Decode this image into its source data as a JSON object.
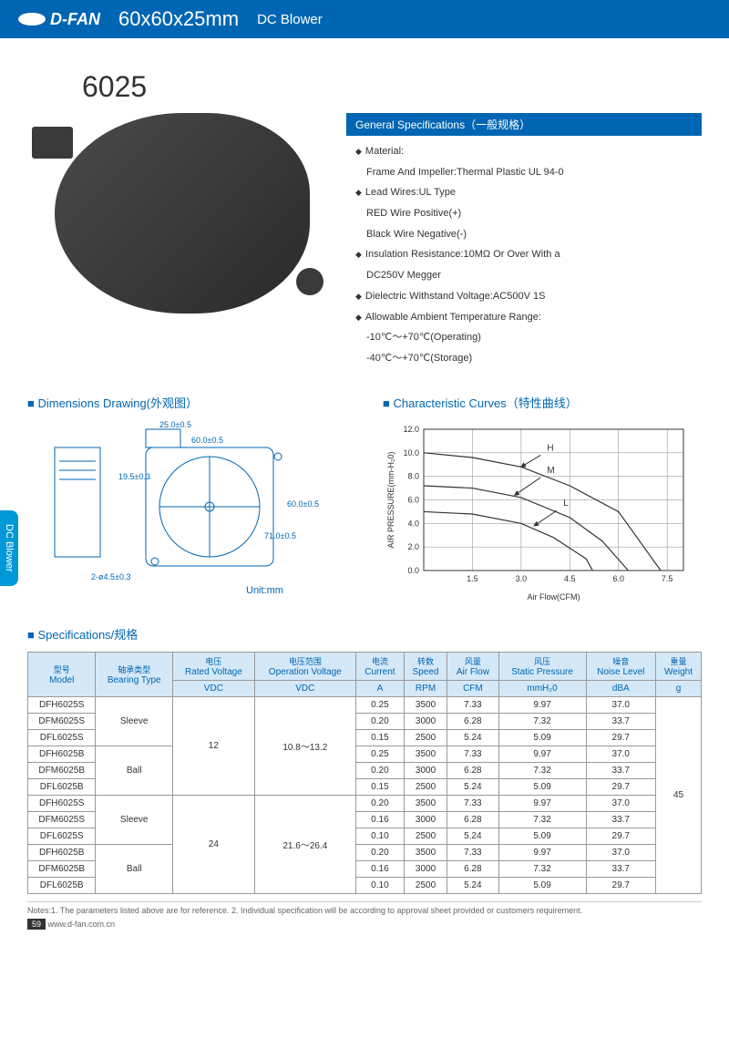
{
  "header": {
    "brand": "D-FAN",
    "dimensions": "60x60x25mm",
    "type": "DC Blower"
  },
  "sideTab": "DC Blower",
  "modelTitle": "6025",
  "generalSpecs": {
    "title": "General Specifications（一般规格）",
    "items": [
      {
        "label": "Material:",
        "sub": [
          "Frame And Impeller:Thermal Plastic UL 94-0"
        ]
      },
      {
        "label": "Lead Wires:UL Type",
        "sub": [
          "RED Wire Positive(+)",
          "Black Wire Negative(-)"
        ]
      },
      {
        "label": "Insulation Resistance:10MΩ Or Over With a",
        "sub": [
          "DC250V Megger"
        ]
      },
      {
        "label": "Dielectric Withstand Voltage:AC500V 1S",
        "sub": []
      },
      {
        "label": "Allowable Ambient Temperature Range:",
        "sub": [
          "-10℃～+70℃(Operating)",
          "-40℃～+70℃(Storage)"
        ]
      }
    ]
  },
  "sections": {
    "dimensions": "Dimensions Drawing(外观图）",
    "curves": "Characteristic Curves（特性曲线）",
    "specs": "Specifications/规格"
  },
  "drawing": {
    "labels": {
      "w": "60.0±0.5",
      "h": "60.0±0.5",
      "outlet": "25.0±0.5",
      "outletH": "19.5±0.3",
      "depth": "71.0±0.5",
      "hole": "2-ø4.5±0.3",
      "unit": "Unit:mm"
    },
    "colors": {
      "line": "#0066b3",
      "text": "#0066b3"
    }
  },
  "chart": {
    "type": "line",
    "xlabel": "Air Flow(CFM)",
    "ylabel": "AIR PRESSURE(mm-H₂0)",
    "xlim": [
      0,
      8
    ],
    "xticks": [
      1.5,
      3.0,
      4.5,
      6.0,
      7.5
    ],
    "ylim": [
      0,
      12
    ],
    "yticks": [
      0.0,
      2.0,
      4.0,
      6.0,
      8.0,
      10.0,
      12.0
    ],
    "grid_color": "#888",
    "line_color": "#333",
    "bg": "#ffffff",
    "series": {
      "H": {
        "label": "H",
        "points": [
          [
            0,
            10
          ],
          [
            1.5,
            9.6
          ],
          [
            3,
            8.8
          ],
          [
            4.5,
            7.2
          ],
          [
            6,
            5
          ],
          [
            7.3,
            0
          ]
        ]
      },
      "M": {
        "label": "M",
        "points": [
          [
            0,
            7.2
          ],
          [
            1.5,
            7
          ],
          [
            3,
            6.2
          ],
          [
            4.5,
            4.5
          ],
          [
            5.5,
            2.5
          ],
          [
            6.3,
            0
          ]
        ]
      },
      "L": {
        "label": "L",
        "points": [
          [
            0,
            5
          ],
          [
            1.5,
            4.8
          ],
          [
            3,
            4
          ],
          [
            4,
            2.8
          ],
          [
            5,
            1
          ],
          [
            5.2,
            0
          ]
        ]
      }
    }
  },
  "table": {
    "headers": [
      {
        "cn": "型号",
        "en": "Model"
      },
      {
        "cn": "轴承类型",
        "en": "Bearing Type"
      },
      {
        "cn": "电压",
        "en": "Rated Voltage",
        "unit": "VDC"
      },
      {
        "cn": "电压范围",
        "en": "Operation Voltage",
        "unit": "VDC"
      },
      {
        "cn": "电流",
        "en": "Current",
        "unit": "A"
      },
      {
        "cn": "转数",
        "en": "Speed",
        "unit": "RPM"
      },
      {
        "cn": "风量",
        "en": "Air Flow",
        "unit": "CFM"
      },
      {
        "cn": "风压",
        "en": "Static Pressure",
        "unit": "mmH₂0"
      },
      {
        "cn": "噪音",
        "en": "Noise Level",
        "unit": "dBA"
      },
      {
        "cn": "重量",
        "en": "Weight",
        "unit": "g"
      }
    ],
    "bearings": {
      "sleeve": "Sleeve",
      "ball": "Ball"
    },
    "voltages": {
      "v12": "12",
      "v24": "24"
    },
    "ranges": {
      "r12": "10.8～13.2",
      "r24": "21.6～26.4"
    },
    "weight": "45",
    "rows": [
      [
        "DFH6025S",
        "0.25",
        "3500",
        "7.33",
        "9.97",
        "37.0"
      ],
      [
        "DFM6025S",
        "0.20",
        "3000",
        "6.28",
        "7.32",
        "33.7"
      ],
      [
        "DFL6025S",
        "0.15",
        "2500",
        "5.24",
        "5.09",
        "29.7"
      ],
      [
        "DFH6025B",
        "0.25",
        "3500",
        "7.33",
        "9.97",
        "37.0"
      ],
      [
        "DFM6025B",
        "0.20",
        "3000",
        "6.28",
        "7.32",
        "33.7"
      ],
      [
        "DFL6025B",
        "0.15",
        "2500",
        "5.24",
        "5.09",
        "29.7"
      ],
      [
        "DFH6025S",
        "0.20",
        "3500",
        "7.33",
        "9.97",
        "37.0"
      ],
      [
        "DFM6025S",
        "0.16",
        "3000",
        "6.28",
        "7.32",
        "33.7"
      ],
      [
        "DFL6025S",
        "0.10",
        "2500",
        "5.24",
        "5.09",
        "29.7"
      ],
      [
        "DFH6025B",
        "0.20",
        "3500",
        "7.33",
        "9.97",
        "37.0"
      ],
      [
        "DFM6025B",
        "0.16",
        "3000",
        "6.28",
        "7.32",
        "33.7"
      ],
      [
        "DFL6025B",
        "0.10",
        "2500",
        "5.24",
        "5.09",
        "29.7"
      ]
    ]
  },
  "notes": "Notes:1. The parameters listed above are for reference.   2. Individual specification will be according to approval sheet provided or customers requirement.",
  "pageNum": "59",
  "url": "www.d-fan.com.cn"
}
